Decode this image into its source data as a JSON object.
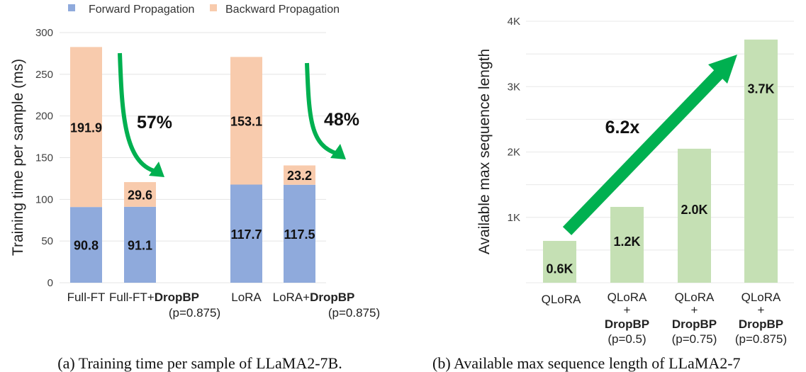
{
  "chart_data": [
    {
      "type": "bar",
      "stacked": true,
      "caption": "(a) Training time per sample of LLaMA2-7B.",
      "ylabel": "Training time per sample (ms)",
      "ylim": [
        0,
        300
      ],
      "yticks": [
        "0",
        "50",
        "100",
        "150",
        "200",
        "250",
        "300"
      ],
      "grid": true,
      "legend_position": "top",
      "categories": [
        {
          "main": "Full-FT",
          "bold": "",
          "sub": ""
        },
        {
          "main": "Full-FT+",
          "bold": "DropBP",
          "sub": "(p=0.875)"
        },
        {
          "main": "LoRA",
          "bold": "",
          "sub": ""
        },
        {
          "main": "LoRA+",
          "bold": "DropBP",
          "sub": "(p=0.875)"
        }
      ],
      "series": [
        {
          "name": "Forward Propagation",
          "color": "#8faadc",
          "values": [
            90.8,
            91.1,
            117.7,
            117.5
          ],
          "labels": [
            "90.8",
            "91.1",
            "117.7",
            "117.5"
          ]
        },
        {
          "name": "Backward Propagation",
          "color": "#f8cbad",
          "values": [
            191.9,
            29.6,
            153.1,
            23.2
          ],
          "labels": [
            "191.9",
            "29.6",
            "153.1",
            "23.2"
          ]
        }
      ],
      "annotations": [
        "57%",
        "48%"
      ],
      "arrow_color": "#00b050"
    },
    {
      "type": "bar",
      "caption": "(b) Available max sequence length of LLaMA2-7",
      "ylabel": "Available max sequence length",
      "ylim": [
        0,
        4
      ],
      "yticks": [
        "1K",
        "2K",
        "3K",
        "4K"
      ],
      "grid": true,
      "categories": [
        {
          "lines": [
            "QLoRA"
          ],
          "bold": "",
          "sub": ""
        },
        {
          "lines": [
            "QLoRA",
            "+"
          ],
          "bold": "DropBP",
          "sub": "(p=0.5)"
        },
        {
          "lines": [
            "QLoRA",
            "+"
          ],
          "bold": "DropBP",
          "sub": "(p=0.75)"
        },
        {
          "lines": [
            "QLoRA",
            "+"
          ],
          "bold": "DropBP",
          "sub": "(p=0.875)"
        }
      ],
      "values_k": [
        0.64,
        1.16,
        2.05,
        3.72
      ],
      "labels": [
        "0.6K",
        "1.2K",
        "2.0K",
        "3.7K"
      ],
      "color": "#c5e0b4",
      "annotation": "6.2x",
      "arrow_color": "#00b050"
    }
  ]
}
